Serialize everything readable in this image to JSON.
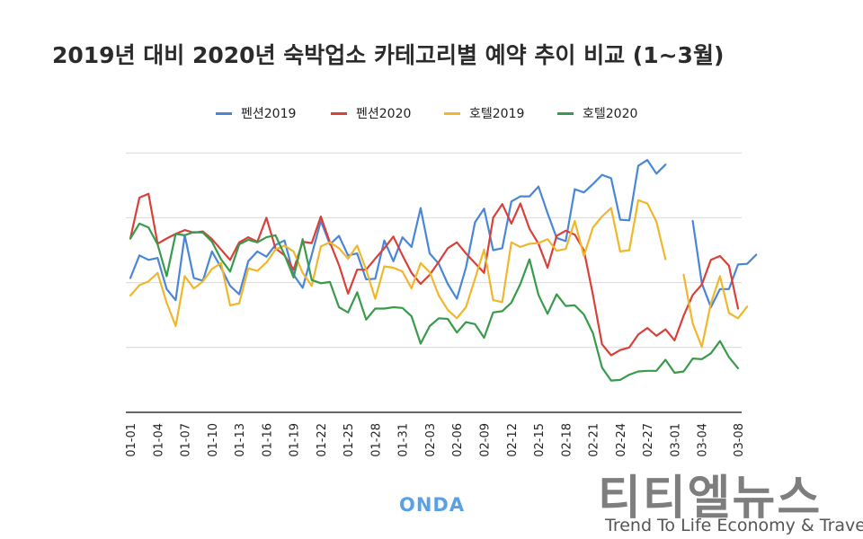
{
  "chart_data": {
    "type": "line",
    "title": "2019년 대비 2020년 숙박업소 카테고리별 예약 추이 비교 (1~3월)",
    "xlabel": "",
    "ylabel": "",
    "ylim": [
      0,
      4
    ],
    "grid": true,
    "y_ticks_labeled": false,
    "legend_position": "top",
    "x_tick_labels": [
      "01-01",
      "01-04",
      "01-07",
      "01-10",
      "01-13",
      "01-16",
      "01-19",
      "01-22",
      "01-25",
      "01-28",
      "01-31",
      "02-03",
      "02-06",
      "02-09",
      "02-12",
      "02-15",
      "02-18",
      "02-21",
      "02-24",
      "02-27",
      "03-01",
      "03-04",
      "03-08"
    ],
    "x_tick_days": [
      1,
      4,
      7,
      10,
      13,
      16,
      19,
      22,
      25,
      28,
      31,
      34,
      37,
      40,
      43,
      46,
      49,
      52,
      55,
      58,
      61,
      64,
      68
    ],
    "series": [
      {
        "name": "펜션2019",
        "color": "#4a86d8",
        "values": [
          2.07,
          2.42,
          2.35,
          2.38,
          1.9,
          1.73,
          2.73,
          2.07,
          2.03,
          2.48,
          2.23,
          1.95,
          1.82,
          2.33,
          2.48,
          2.4,
          2.58,
          2.65,
          2.12,
          1.92,
          2.43,
          2.95,
          2.59,
          2.72,
          2.42,
          2.45,
          2.05,
          2.06,
          2.65,
          2.33,
          2.7,
          2.55,
          3.15,
          2.45,
          2.29,
          1.98,
          1.75,
          2.23,
          2.93,
          3.14,
          2.5,
          2.53,
          3.25,
          3.33,
          3.33,
          3.48,
          3.07,
          2.69,
          2.64,
          3.44,
          3.39,
          3.52,
          3.66,
          3.61,
          2.97,
          2.96,
          3.8,
          3.89,
          3.68,
          3.82,
          null,
          null,
          2.95,
          1.99,
          1.62,
          1.9,
          1.9,
          2.28,
          2.29,
          2.43
        ]
      },
      {
        "name": "펜션2020",
        "color": "#d9403a",
        "values": [
          2.68,
          3.31,
          3.37,
          2.6,
          2.68,
          2.75,
          2.81,
          2.77,
          2.79,
          2.67,
          2.51,
          2.35,
          2.62,
          2.7,
          2.63,
          3.0,
          2.53,
          2.42,
          2.2,
          2.63,
          2.61,
          3.02,
          2.62,
          2.27,
          1.83,
          2.2,
          2.2,
          2.37,
          2.53,
          2.71,
          2.42,
          2.15,
          1.98,
          2.12,
          2.32,
          2.53,
          2.62,
          2.45,
          2.3,
          2.15,
          3.0,
          3.21,
          2.91,
          3.22,
          2.83,
          2.6,
          2.23,
          2.72,
          2.8,
          2.74,
          2.5,
          1.81,
          1.05,
          0.88,
          0.96,
          1.0,
          1.2,
          1.3,
          1.18,
          1.28,
          1.11,
          1.49,
          1.81,
          1.97,
          2.35,
          2.41,
          2.26,
          1.6
        ]
      },
      {
        "name": "호텔2019",
        "color": "#f0b72c",
        "values": [
          1.8,
          1.96,
          2.02,
          2.15,
          1.69,
          1.33,
          2.1,
          1.91,
          2.02,
          2.21,
          2.3,
          1.65,
          1.68,
          2.22,
          2.18,
          2.31,
          2.51,
          2.57,
          2.48,
          2.15,
          1.95,
          2.56,
          2.62,
          2.53,
          2.37,
          2.57,
          2.2,
          1.75,
          2.25,
          2.23,
          2.17,
          1.91,
          2.3,
          2.16,
          1.8,
          1.58,
          1.45,
          1.62,
          2.06,
          2.51,
          1.73,
          1.7,
          2.62,
          2.55,
          2.6,
          2.61,
          2.67,
          2.49,
          2.52,
          2.95,
          2.41,
          2.85,
          3.02,
          3.15,
          2.48,
          2.5,
          3.27,
          3.22,
          2.94,
          2.36,
          null,
          2.12,
          1.37,
          1.01,
          1.68,
          2.1,
          1.53,
          1.45,
          1.63
        ]
      },
      {
        "name": "호텔2020",
        "color": "#3a9a4c",
        "values": [
          2.68,
          2.91,
          2.85,
          2.59,
          2.1,
          2.75,
          2.73,
          2.78,
          2.77,
          2.63,
          2.36,
          2.17,
          2.59,
          2.66,
          2.62,
          2.7,
          2.73,
          2.43,
          2.08,
          2.67,
          2.04,
          1.99,
          2.01,
          1.62,
          1.54,
          1.85,
          1.43,
          1.6,
          1.6,
          1.62,
          1.61,
          1.48,
          1.06,
          1.33,
          1.45,
          1.44,
          1.23,
          1.39,
          1.36,
          1.15,
          1.54,
          1.56,
          1.69,
          1.98,
          2.36,
          1.81,
          1.52,
          1.82,
          1.64,
          1.65,
          1.51,
          1.22,
          0.69,
          0.49,
          0.5,
          0.58,
          0.63,
          0.64,
          0.64,
          0.81,
          0.61,
          0.63,
          0.83,
          0.82,
          0.91,
          1.1,
          0.85,
          0.68
        ]
      }
    ]
  },
  "legend_entries": [
    "펜션2019",
    "펜션2020",
    "호텔2019",
    "호텔2020"
  ],
  "brand": "ONDA",
  "watermark": {
    "korean": "티티엘뉴스",
    "english": "Trend To Life Economy & Travel"
  }
}
